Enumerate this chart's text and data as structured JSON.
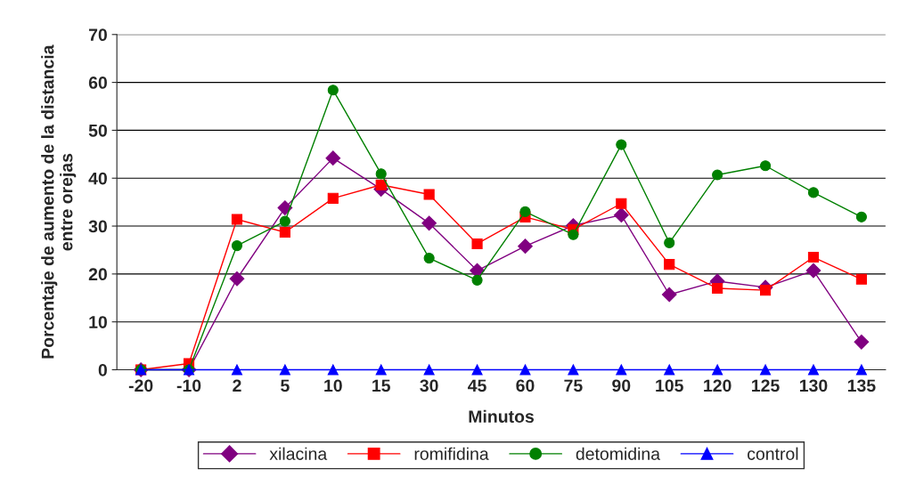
{
  "chart_data": {
    "type": "line",
    "xlabel": "Minutos",
    "ylabel": "Porcentaje de aumento de la distancia\nentre orejas",
    "categories": [
      "-20",
      "-10",
      "2",
      "5",
      "10",
      "15",
      "30",
      "45",
      "60",
      "75",
      "90",
      "105",
      "120",
      "125",
      "130",
      "135"
    ],
    "series": [
      {
        "name": "xilacina",
        "color": "#800080",
        "marker": "diamond",
        "values": [
          0,
          0,
          19.0,
          33.8,
          44.2,
          37.7,
          30.6,
          20.7,
          25.8,
          30.1,
          32.3,
          15.7,
          18.5,
          17.2,
          20.7,
          5.8
        ]
      },
      {
        "name": "romifidina",
        "color": "#ff0000",
        "marker": "square",
        "values": [
          0,
          1.3,
          31.4,
          28.7,
          35.8,
          38.6,
          36.6,
          26.3,
          31.9,
          29.3,
          34.7,
          22.0,
          17.0,
          16.6,
          23.5,
          18.9
        ]
      },
      {
        "name": "detomidina",
        "color": "#008000",
        "marker": "circle",
        "values": [
          0,
          0,
          25.9,
          31.0,
          58.4,
          40.9,
          23.3,
          18.7,
          33.0,
          28.2,
          47.0,
          26.5,
          40.7,
          42.6,
          37.0,
          31.9
        ]
      },
      {
        "name": "control",
        "color": "#0000ff",
        "marker": "triangle",
        "values": [
          0,
          0,
          0,
          0,
          0,
          0,
          0,
          0,
          0,
          0,
          0,
          0,
          0,
          0,
          0,
          0
        ]
      }
    ],
    "ylim": [
      0,
      70
    ],
    "yticks": [
      0,
      10,
      20,
      30,
      40,
      50,
      60,
      70
    ],
    "grid": "y",
    "legend": "bottom",
    "line_style": "solid"
  }
}
